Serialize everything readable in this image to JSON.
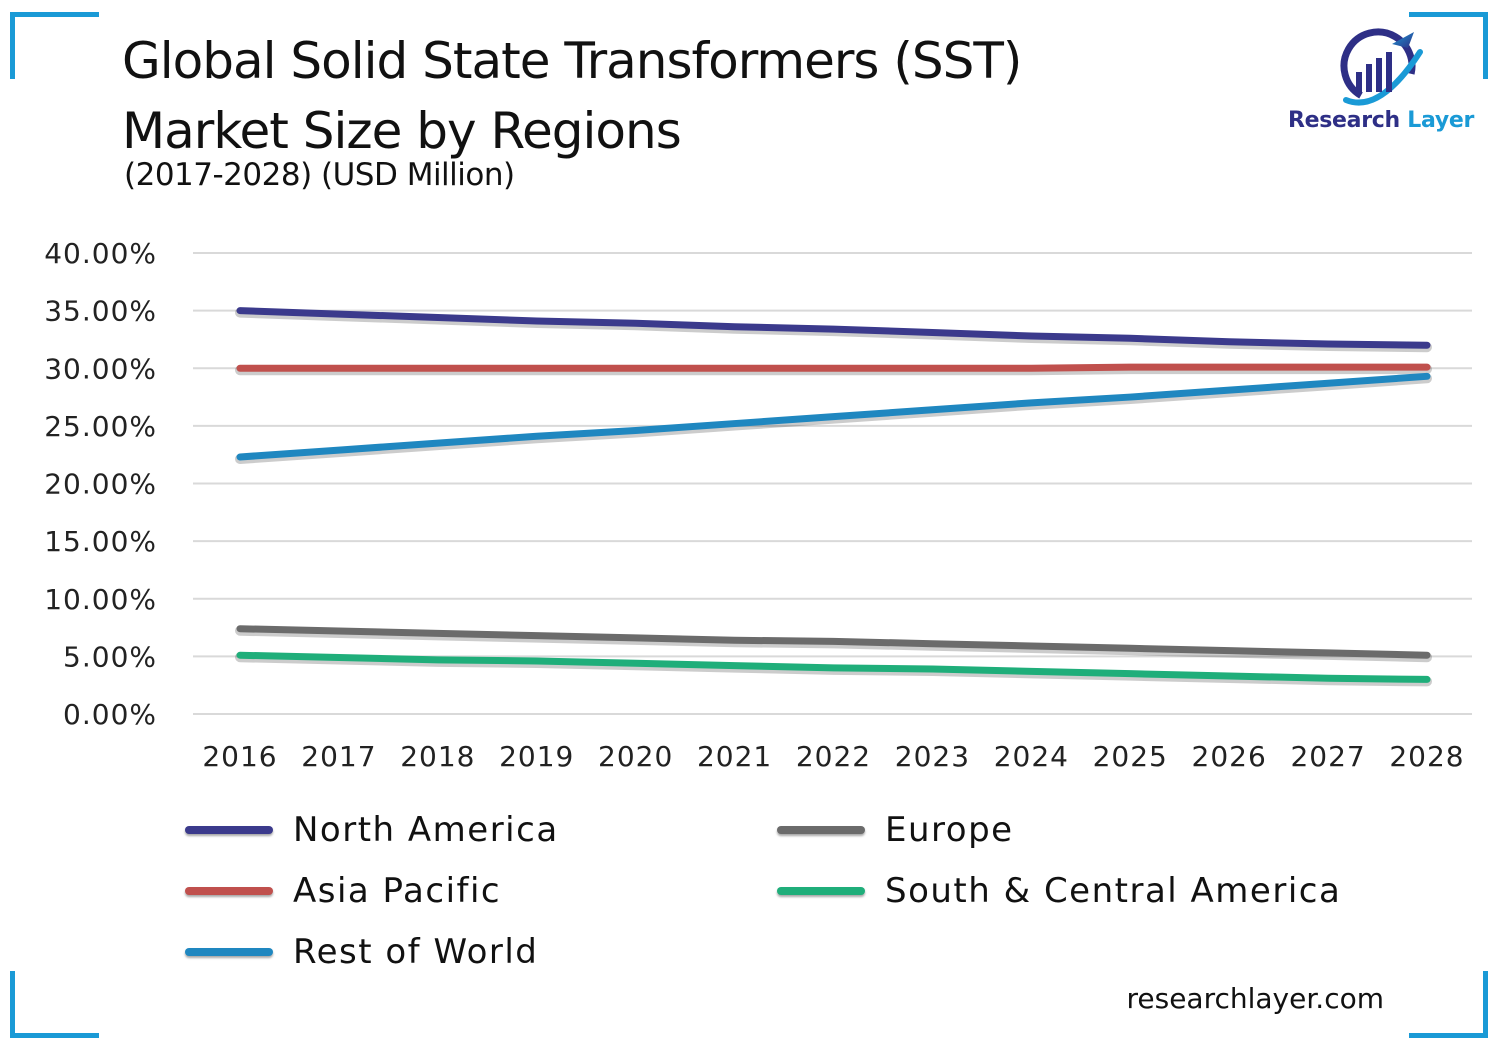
{
  "header": {
    "title_line1": "Global Solid State Transformers (SST)",
    "title_line2": "Market Size by Regions",
    "subtitle": "(2017-2028) (USD Million)"
  },
  "brand": {
    "name_part1": "Research",
    "name_part2": "Layer",
    "website": "researchlayer.com",
    "accent": "#1a9ad6",
    "primary": "#2e2f86"
  },
  "chart_data": {
    "type": "line",
    "title": "Global Solid State Transformers (SST) Market Size by Regions",
    "subtitle": "(2017-2028) (USD Million)",
    "xlabel": "",
    "ylabel": "",
    "ylim": [
      0,
      40
    ],
    "yticks": [
      "0.00%",
      "5.00%",
      "10.00%",
      "15.00%",
      "20.00%",
      "25.00%",
      "30.00%",
      "35.00%",
      "40.00%"
    ],
    "grid": true,
    "legend_position": "bottom",
    "categories": [
      "2016",
      "2017",
      "2018",
      "2019",
      "2020",
      "2021",
      "2022",
      "2023",
      "2024",
      "2025",
      "2026",
      "2027",
      "2028"
    ],
    "series": [
      {
        "name": "North America",
        "color": "#3b3a8c",
        "values": [
          35.0,
          34.7,
          34.4,
          34.1,
          33.9,
          33.6,
          33.4,
          33.1,
          32.8,
          32.6,
          32.3,
          32.1,
          32.0
        ]
      },
      {
        "name": "Europe",
        "color": "#6b6b6b",
        "values": [
          7.4,
          7.2,
          7.0,
          6.8,
          6.6,
          6.4,
          6.3,
          6.1,
          5.9,
          5.7,
          5.5,
          5.3,
          5.1
        ]
      },
      {
        "name": "Asia Pacific",
        "color": "#c0504d",
        "values": [
          30.0,
          30.0,
          30.0,
          30.0,
          30.0,
          30.0,
          30.0,
          30.0,
          30.0,
          30.1,
          30.1,
          30.1,
          30.1
        ]
      },
      {
        "name": "South & Central America",
        "color": "#1fae7a",
        "values": [
          5.1,
          4.9,
          4.7,
          4.6,
          4.4,
          4.2,
          4.0,
          3.9,
          3.7,
          3.5,
          3.3,
          3.1,
          3.0
        ]
      },
      {
        "name": "Rest of World",
        "color": "#1f87c0",
        "values": [
          22.3,
          22.9,
          23.5,
          24.1,
          24.6,
          25.2,
          25.8,
          26.4,
          27.0,
          27.5,
          28.1,
          28.7,
          29.3
        ]
      }
    ]
  }
}
